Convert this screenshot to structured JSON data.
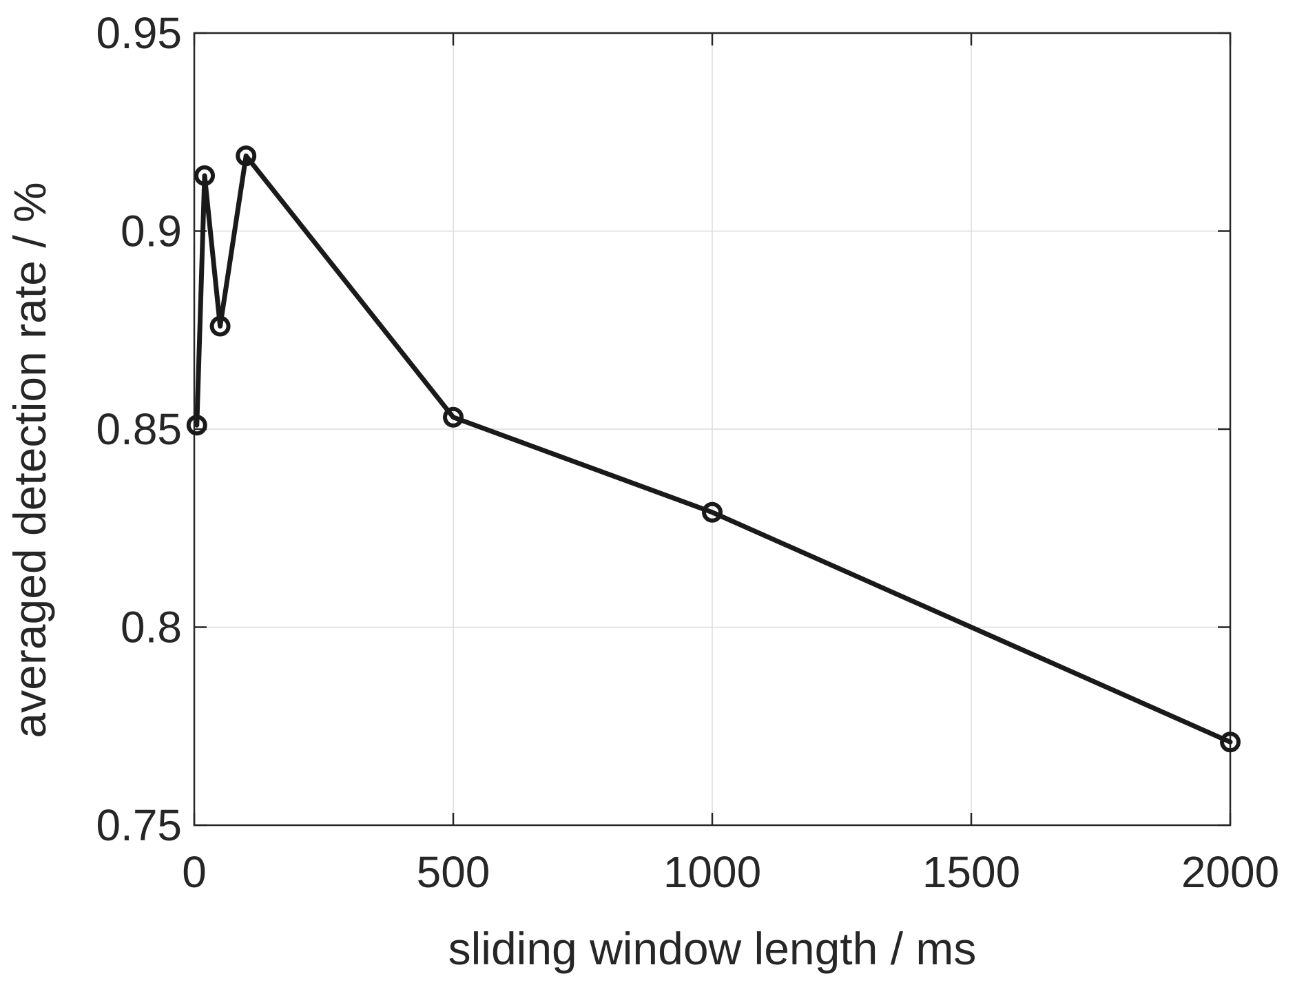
{
  "chart_data": {
    "type": "line",
    "title": "",
    "xlabel": "sliding window length / ms",
    "ylabel": "averaged detection rate / %",
    "xlim": [
      0,
      2000
    ],
    "ylim": [
      0.75,
      0.95
    ],
    "xticks": [
      0,
      500,
      1000,
      1500,
      2000
    ],
    "yticks": [
      0.75,
      0.8,
      0.85,
      0.9,
      0.95
    ],
    "xtick_labels": [
      "0",
      "500",
      "1000",
      "1500",
      "2000"
    ],
    "ytick_labels": [
      "0.75",
      "0.8",
      "0.85",
      "0.9",
      "0.95"
    ],
    "grid": true,
    "marker": "circle",
    "colors": {
      "line": "#1a1a1a",
      "grid": "#dcdcdc",
      "axis": "#262626"
    },
    "series": [
      {
        "x": [
          5,
          20,
          50,
          100,
          500,
          1000,
          2000
        ],
        "y": [
          0.851,
          0.914,
          0.876,
          0.919,
          0.853,
          0.829,
          0.771
        ]
      }
    ]
  }
}
